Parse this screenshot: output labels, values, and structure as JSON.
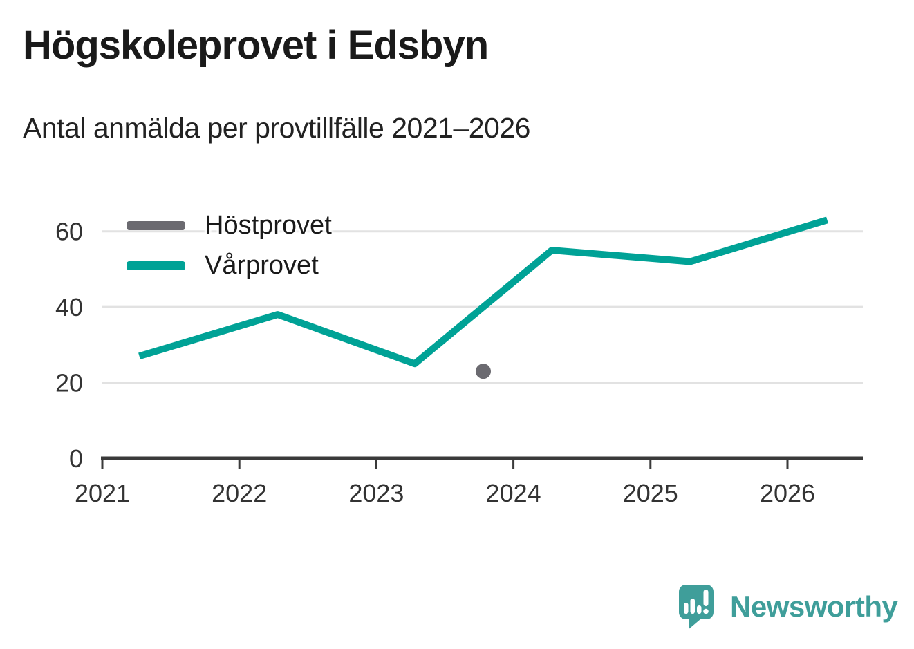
{
  "chart_data": {
    "type": "line",
    "title": "Högskoleprovet i Edsbyn",
    "subtitle": "Antal anmälda per provtillfälle 2021–2026",
    "xlabel": "",
    "ylabel": "",
    "xlim": [
      2021,
      2026.55
    ],
    "ylim": [
      0,
      70
    ],
    "xticks": [
      2021,
      2022,
      2023,
      2024,
      2025,
      2026
    ],
    "yticks": [
      0,
      20,
      40,
      60
    ],
    "grid": "horizontal",
    "legend_position": "top-left-inside",
    "series": [
      {
        "name": "Höstprovet",
        "color": "#6b6a70",
        "style": "point",
        "points": [
          {
            "x": 2023.78,
            "y": 23
          }
        ]
      },
      {
        "name": "Vårprovet",
        "color": "#00a296",
        "style": "line",
        "points": [
          {
            "x": 2021.27,
            "y": 27
          },
          {
            "x": 2022.28,
            "y": 38
          },
          {
            "x": 2023.28,
            "y": 25
          },
          {
            "x": 2024.28,
            "y": 55
          },
          {
            "x": 2025.29,
            "y": 52
          },
          {
            "x": 2026.29,
            "y": 63
          }
        ]
      }
    ]
  },
  "colors": {
    "grid": "#e2e2e2",
    "axis": "#3a3a3a",
    "tick_text": "#333333",
    "title_text": "#1a1a1a",
    "brand": "#3f9e9a"
  },
  "footer": {
    "brand": "Newsworthy"
  }
}
